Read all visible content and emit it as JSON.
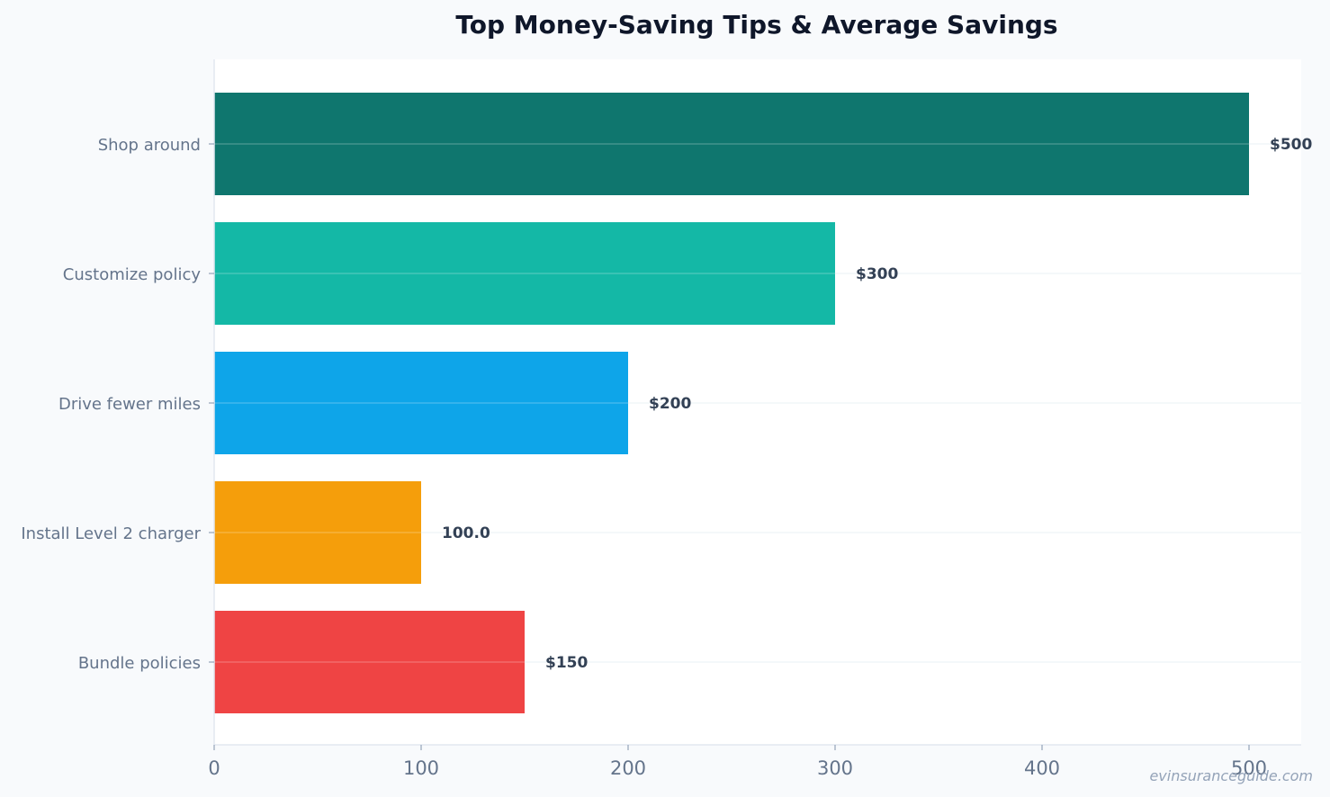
{
  "chart_data": {
    "type": "bar",
    "orientation": "horizontal",
    "title": "Top Money-Saving Tips & Average Savings",
    "xlabel": "",
    "ylabel": "",
    "categories": [
      "Shop around",
      "Customize policy",
      "Drive fewer miles",
      "Install Level 2 charger",
      "Bundle policies"
    ],
    "values": [
      500,
      300,
      200,
      100,
      150
    ],
    "data_labels": [
      "$500",
      "$300",
      "$200",
      "100.0",
      "$150"
    ],
    "colors": [
      "#0f766e",
      "#14b8a6",
      "#0ea5e9",
      "#f59e0b",
      "#ef4444"
    ],
    "xlim": [
      0,
      525
    ],
    "xticks": [
      0,
      100,
      200,
      300,
      400,
      500
    ],
    "xtick_labels": [
      "0",
      "100",
      "200",
      "300",
      "400",
      "500"
    ],
    "grid": true,
    "legend": "none"
  },
  "watermark": "evinsuranceguide.com"
}
